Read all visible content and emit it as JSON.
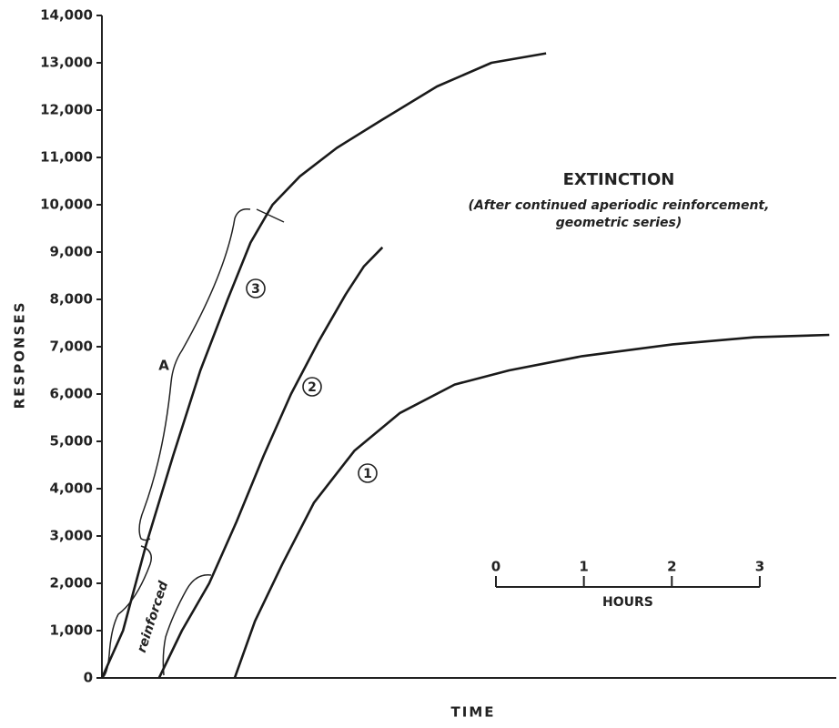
{
  "chart_data": {
    "type": "line",
    "xlabel": "TIME",
    "ylabel": "RESPONSES",
    "xlim": [
      0,
      8.35
    ],
    "ylim": [
      0,
      14000
    ],
    "yticks": [
      0,
      {
        "value": 1000,
        "label": "1,000"
      },
      {
        "value": 2000,
        "label": "2,000"
      },
      {
        "value": 3000,
        "label": "3,000"
      },
      {
        "value": 4000,
        "label": "4,000"
      },
      {
        "value": 5000,
        "label": "5,000"
      },
      {
        "value": 6000,
        "label": "6,000"
      },
      {
        "value": 7000,
        "label": "7,000"
      },
      {
        "value": 8000,
        "label": "8,000"
      },
      {
        "value": 9000,
        "label": "9,000"
      },
      {
        "value": 10000,
        "label": "10,000"
      },
      {
        "value": 11000,
        "label": "11,000"
      },
      {
        "value": 12000,
        "label": "12,000"
      },
      {
        "value": 13000,
        "label": "13,000"
      },
      {
        "value": 14000,
        "label": "14,000"
      }
    ],
    "series": [
      {
        "name": "1",
        "color": "#1a1a1a",
        "x": [
          1.51,
          1.74,
          2.05,
          2.41,
          2.87,
          3.39,
          4.01,
          4.63,
          5.46,
          6.49,
          7.42,
          8.27
        ],
        "values": [
          0,
          1200,
          2400,
          3700,
          4800,
          5600,
          6200,
          6500,
          6800,
          7050,
          7200,
          7250
        ]
      },
      {
        "name": "2",
        "color": "#1a1a1a",
        "x": [
          0.65,
          0.91,
          1.22,
          1.53,
          1.84,
          2.15,
          2.46,
          2.77,
          2.98,
          3.19
        ],
        "values": [
          0,
          1000,
          2000,
          3300,
          4700,
          6000,
          7100,
          8100,
          8700,
          9100
        ]
      },
      {
        "name": "3",
        "color": "#1a1a1a",
        "x": [
          0,
          0.24,
          0.5,
          0.81,
          1.12,
          1.43,
          1.69,
          1.94,
          2.25,
          2.67,
          3.19,
          3.81,
          4.43,
          5.05
        ],
        "values": [
          0,
          1000,
          2800,
          4700,
          6500,
          8000,
          9200,
          10000,
          10600,
          11200,
          11800,
          12500,
          13000,
          13200
        ]
      }
    ],
    "annotations": [
      "EXTINCTION",
      "(After continued aperiodic reinforcement,",
      "geometric series)",
      "A",
      "reinforced"
    ],
    "scale_bar": {
      "label": "HOURS",
      "ticks": [
        0,
        1,
        2,
        3
      ]
    }
  }
}
